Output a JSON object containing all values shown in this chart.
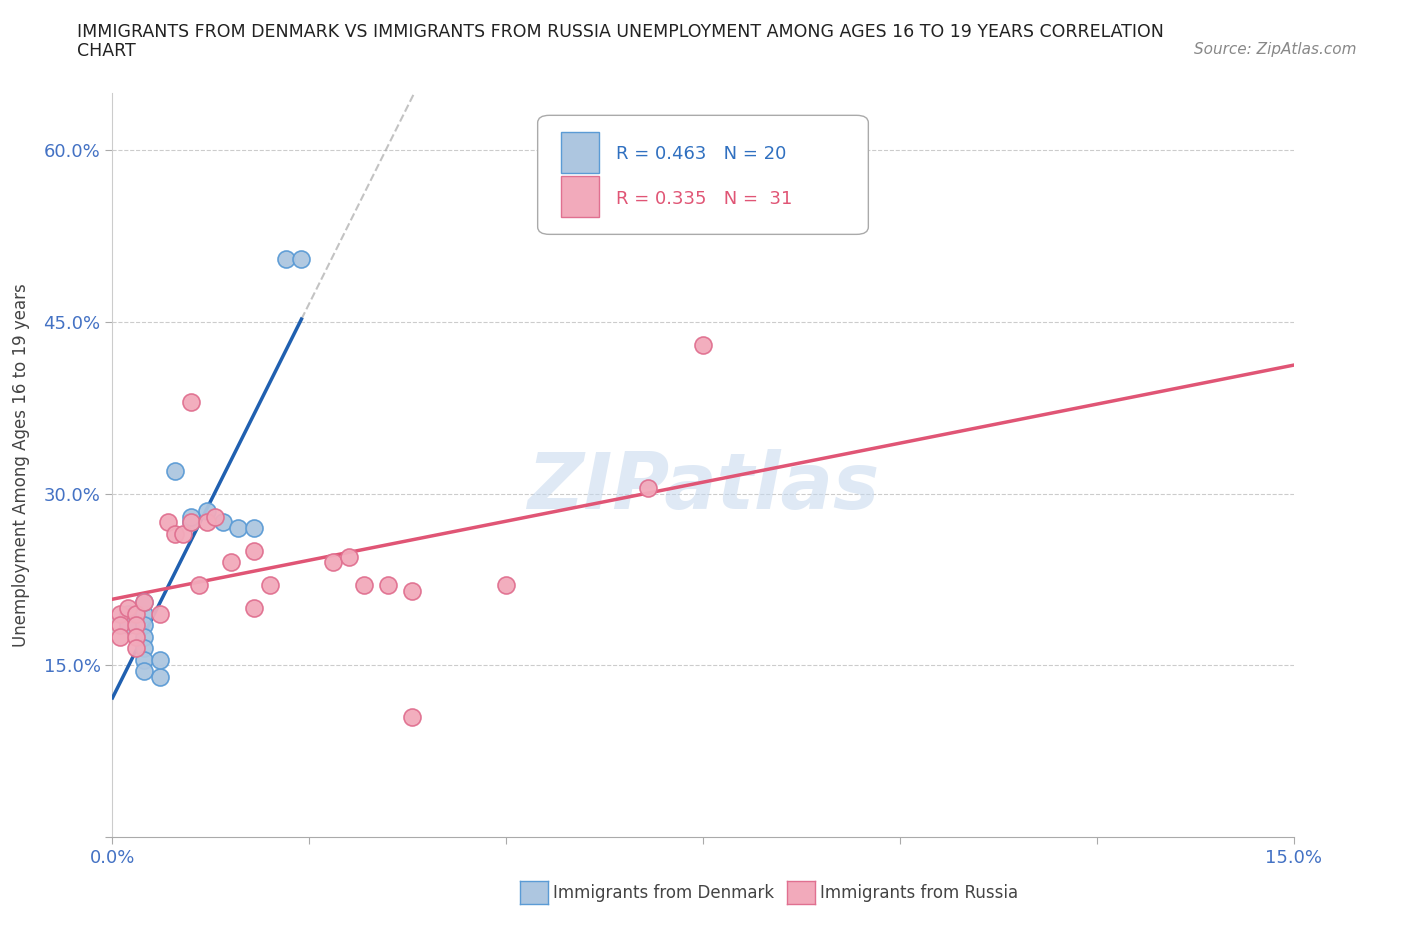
{
  "title_line1": "IMMIGRANTS FROM DENMARK VS IMMIGRANTS FROM RUSSIA UNEMPLOYMENT AMONG AGES 16 TO 19 YEARS CORRELATION",
  "title_line2": "CHART",
  "source": "Source: ZipAtlas.com",
  "ylabel": "Unemployment Among Ages 16 to 19 years",
  "xlim": [
    0.0,
    0.15
  ],
  "ylim": [
    0.0,
    0.65
  ],
  "x_ticks": [
    0.0,
    0.025,
    0.05,
    0.075,
    0.1,
    0.125,
    0.15
  ],
  "x_tick_labels": [
    "0.0%",
    "",
    "",
    "",
    "",
    "",
    "15.0%"
  ],
  "y_ticks": [
    0.0,
    0.15,
    0.3,
    0.45,
    0.6
  ],
  "y_tick_labels": [
    "",
    "15.0%",
    "30.0%",
    "45.0%",
    "60.0%"
  ],
  "denmark_R": "0.463",
  "denmark_N": "20",
  "russia_R": "0.335",
  "russia_N": "31",
  "denmark_color": "#adc6e0",
  "russia_color": "#f2aabb",
  "denmark_edge": "#5b9bd5",
  "russia_edge": "#e07090",
  "trend_denmark_color": "#2060b0",
  "trend_russia_color": "#e05575",
  "watermark": "ZIPatlas",
  "denmark_points": [
    [
      0.002,
      0.195
    ],
    [
      0.002,
      0.185
    ],
    [
      0.004,
      0.195
    ],
    [
      0.004,
      0.205
    ],
    [
      0.004,
      0.185
    ],
    [
      0.004,
      0.175
    ],
    [
      0.004,
      0.165
    ],
    [
      0.004,
      0.155
    ],
    [
      0.004,
      0.145
    ],
    [
      0.006,
      0.14
    ],
    [
      0.006,
      0.155
    ],
    [
      0.008,
      0.32
    ],
    [
      0.01,
      0.275
    ],
    [
      0.01,
      0.28
    ],
    [
      0.012,
      0.285
    ],
    [
      0.014,
      0.275
    ],
    [
      0.016,
      0.27
    ],
    [
      0.018,
      0.27
    ],
    [
      0.022,
      0.505
    ],
    [
      0.024,
      0.505
    ]
  ],
  "russia_points": [
    [
      0.001,
      0.195
    ],
    [
      0.001,
      0.185
    ],
    [
      0.001,
      0.175
    ],
    [
      0.002,
      0.2
    ],
    [
      0.003,
      0.195
    ],
    [
      0.003,
      0.185
    ],
    [
      0.003,
      0.175
    ],
    [
      0.003,
      0.165
    ],
    [
      0.004,
      0.205
    ],
    [
      0.006,
      0.195
    ],
    [
      0.007,
      0.275
    ],
    [
      0.008,
      0.265
    ],
    [
      0.009,
      0.265
    ],
    [
      0.01,
      0.275
    ],
    [
      0.01,
      0.38
    ],
    [
      0.011,
      0.22
    ],
    [
      0.012,
      0.275
    ],
    [
      0.013,
      0.28
    ],
    [
      0.015,
      0.24
    ],
    [
      0.018,
      0.25
    ],
    [
      0.018,
      0.2
    ],
    [
      0.02,
      0.22
    ],
    [
      0.028,
      0.24
    ],
    [
      0.03,
      0.245
    ],
    [
      0.032,
      0.22
    ],
    [
      0.035,
      0.22
    ],
    [
      0.038,
      0.215
    ],
    [
      0.038,
      0.105
    ],
    [
      0.05,
      0.22
    ],
    [
      0.068,
      0.305
    ],
    [
      0.075,
      0.43
    ]
  ]
}
